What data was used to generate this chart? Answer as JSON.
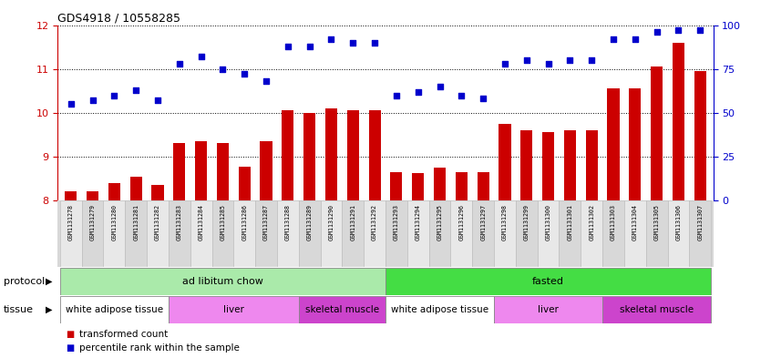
{
  "title": "GDS4918 / 10558285",
  "samples": [
    "GSM1131278",
    "GSM1131279",
    "GSM1131280",
    "GSM1131281",
    "GSM1131282",
    "GSM1131283",
    "GSM1131284",
    "GSM1131285",
    "GSM1131286",
    "GSM1131287",
    "GSM1131288",
    "GSM1131289",
    "GSM1131290",
    "GSM1131291",
    "GSM1131292",
    "GSM1131293",
    "GSM1131294",
    "GSM1131295",
    "GSM1131296",
    "GSM1131297",
    "GSM1131298",
    "GSM1131299",
    "GSM1131300",
    "GSM1131301",
    "GSM1131302",
    "GSM1131303",
    "GSM1131304",
    "GSM1131305",
    "GSM1131306",
    "GSM1131307"
  ],
  "bar_values": [
    8.2,
    8.2,
    8.4,
    8.55,
    8.35,
    9.3,
    9.35,
    9.3,
    8.78,
    9.35,
    10.05,
    10.0,
    10.1,
    10.05,
    10.05,
    8.65,
    8.62,
    8.75,
    8.65,
    8.65,
    9.75,
    9.6,
    9.55,
    9.6,
    9.6,
    10.55,
    10.55,
    11.05,
    11.6,
    10.95
  ],
  "percentile_values_pct": [
    55,
    57,
    60,
    63,
    57,
    78,
    82,
    75,
    72,
    68,
    88,
    88,
    92,
    90,
    90,
    60,
    62,
    65,
    60,
    58,
    78,
    80,
    78,
    80,
    80,
    92,
    92,
    96,
    97,
    97
  ],
  "bar_color": "#cc0000",
  "dot_color": "#0000cc",
  "ylim_left": [
    8,
    12
  ],
  "ylim_right": [
    0,
    100
  ],
  "yticks_left": [
    8,
    9,
    10,
    11,
    12
  ],
  "yticks_right": [
    0,
    25,
    50,
    75,
    100
  ],
  "grid_values": [
    9,
    10,
    11
  ],
  "protocol_groups": [
    {
      "label": "ad libitum chow",
      "start": 0,
      "end": 14,
      "color": "#aaeaaa"
    },
    {
      "label": "fasted",
      "start": 15,
      "end": 29,
      "color": "#44dd44"
    }
  ],
  "tissue_groups": [
    {
      "label": "white adipose tissue",
      "start": 0,
      "end": 4,
      "color": "#ffffff"
    },
    {
      "label": "liver",
      "start": 5,
      "end": 10,
      "color": "#ee88ee"
    },
    {
      "label": "skeletal muscle",
      "start": 11,
      "end": 14,
      "color": "#dd55dd"
    },
    {
      "label": "white adipose tissue",
      "start": 15,
      "end": 19,
      "color": "#ffffff"
    },
    {
      "label": "liver",
      "start": 20,
      "end": 24,
      "color": "#ee88ee"
    },
    {
      "label": "skeletal muscle",
      "start": 25,
      "end": 29,
      "color": "#dd55dd"
    }
  ],
  "left_axis_color": "#cc0000",
  "right_axis_color": "#0000cc",
  "bar_width": 0.55,
  "fig_width": 8.46,
  "fig_height": 3.93,
  "dpi": 100
}
